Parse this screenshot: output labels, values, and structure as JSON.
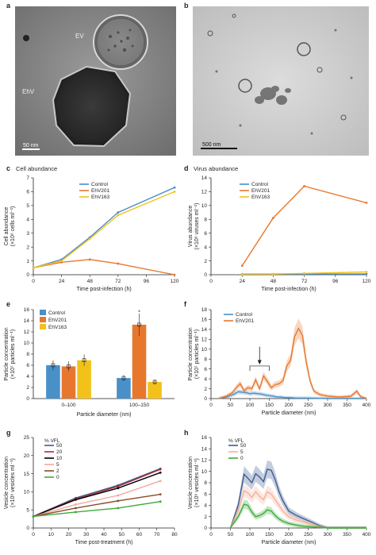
{
  "panels": {
    "a": {
      "label": "a",
      "em_labels": {
        "ev": "EV",
        "ehv": "EhV"
      },
      "scale_bar": "50 nm"
    },
    "b": {
      "label": "b",
      "scale_bar": "500 nm"
    },
    "c": {
      "label": "c",
      "title": "Cell abundance"
    },
    "d": {
      "label": "d",
      "title": "Virus abundance"
    },
    "e": {
      "label": "e"
    },
    "f": {
      "label": "f"
    },
    "g": {
      "label": "g"
    },
    "h": {
      "label": "h"
    }
  },
  "colors": {
    "control": "#4a90c8",
    "ehv201": "#e8772e",
    "ehv163": "#f2c21b"
  },
  "chart_data": [
    {
      "id": "c",
      "type": "line",
      "title": "Cell abundance",
      "xlabel": "Time post-infection (h)",
      "ylabel": "Cell abundance",
      "ylabel2": "(×10⁶ cells ml⁻¹)",
      "xlim": [
        0,
        120
      ],
      "ylim": [
        0,
        7
      ],
      "xticks": [
        0,
        24,
        48,
        72,
        96,
        120
      ],
      "yticks": [
        0,
        1,
        2,
        3,
        4,
        5,
        6,
        7
      ],
      "series": [
        {
          "name": "Control",
          "color": "#4a90c8",
          "x": [
            0,
            24,
            48,
            72,
            120
          ],
          "y": [
            0.5,
            1.1,
            2.7,
            4.5,
            6.3
          ]
        },
        {
          "name": "EhV201",
          "color": "#e8772e",
          "x": [
            0,
            24,
            48,
            72,
            120
          ],
          "y": [
            0.5,
            0.9,
            1.1,
            0.8,
            0.0
          ]
        },
        {
          "name": "EhV163",
          "color": "#f2c21b",
          "x": [
            0,
            24,
            48,
            72,
            120
          ],
          "y": [
            0.5,
            1.0,
            2.6,
            4.3,
            6.0
          ]
        }
      ]
    },
    {
      "id": "d",
      "type": "line",
      "title": "Virus abundance",
      "xlabel": "Time post-infection (h)",
      "ylabel": "Virus abundance",
      "ylabel2": "(×10⁶ viruses ml⁻¹)",
      "xlim": [
        0,
        120
      ],
      "ylim": [
        0,
        14
      ],
      "xticks": [
        0,
        24,
        48,
        72,
        96,
        120
      ],
      "yticks": [
        0,
        2,
        4,
        6,
        8,
        10,
        12,
        14
      ],
      "series": [
        {
          "name": "Control",
          "color": "#4a90c8",
          "x": [
            24,
            48,
            72,
            120
          ],
          "y": [
            0.1,
            0.1,
            0.1,
            0.1
          ]
        },
        {
          "name": "EhV201",
          "color": "#e8772e",
          "x": [
            24,
            48,
            72,
            120
          ],
          "y": [
            1.3,
            8.2,
            12.8,
            10.4
          ]
        },
        {
          "name": "EhV163",
          "color": "#f2c21b",
          "x": [
            24,
            48,
            72,
            120
          ],
          "y": [
            0.1,
            0.1,
            0.2,
            0.4
          ]
        }
      ]
    },
    {
      "id": "e",
      "type": "bar",
      "xlabel": "Particle diameter (nm)",
      "ylabel": "Particle concentration",
      "ylabel2": "(×10⁷ particles ml⁻¹)",
      "ylim": [
        0,
        16
      ],
      "yticks": [
        0,
        2,
        4,
        6,
        8,
        10,
        12,
        14,
        16
      ],
      "categories": [
        "0–100",
        "100–150"
      ],
      "annotation": "*",
      "series": [
        {
          "name": "Control",
          "color": "#4a90c8",
          "values": [
            6.0,
            3.7
          ]
        },
        {
          "name": "EhV201",
          "color": "#e8772e",
          "values": [
            5.8,
            13.3
          ]
        },
        {
          "name": "EhV163",
          "color": "#f2c21b",
          "values": [
            6.9,
            3.0
          ]
        }
      ]
    },
    {
      "id": "f",
      "type": "line",
      "xlabel": "Particle diameter (nm)",
      "ylabel": "Particle concentration",
      "ylabel2": "(×10⁷ particles ml⁻¹)",
      "xlim": [
        0,
        400
      ],
      "ylim": [
        0,
        18
      ],
      "xticks": [
        0,
        50,
        100,
        150,
        200,
        250,
        300,
        350,
        400
      ],
      "yticks": [
        0,
        2,
        4,
        6,
        8,
        10,
        12,
        14,
        16,
        18
      ],
      "series": [
        {
          "name": "Control",
          "color": "#4a90c8",
          "x": [
            20,
            40,
            60,
            70,
            80,
            90,
            100,
            110,
            120,
            130,
            140,
            150,
            160,
            170,
            180,
            190,
            200,
            220,
            250,
            300,
            350,
            400
          ],
          "y": [
            0,
            0.3,
            0.9,
            1.4,
            1.3,
            1.2,
            1.0,
            1.1,
            1.0,
            0.9,
            0.7,
            0.6,
            0.5,
            0.3,
            0.3,
            0.2,
            0.2,
            0.1,
            0.1,
            0,
            0,
            0
          ]
        },
        {
          "name": "EhV201",
          "color": "#e8772e",
          "x": [
            20,
            40,
            55,
            65,
            75,
            85,
            95,
            105,
            115,
            125,
            135,
            145,
            155,
            165,
            175,
            185,
            195,
            205,
            215,
            225,
            235,
            245,
            255,
            265,
            280,
            300,
            330,
            350,
            360,
            375,
            385,
            400
          ],
          "y": [
            0,
            0.5,
            1.2,
            2.2,
            3.0,
            1.6,
            2.2,
            2.0,
            3.8,
            2.0,
            4.6,
            3.5,
            2.2,
            2.8,
            3.0,
            3.6,
            6.6,
            7.8,
            12.5,
            14.2,
            12.8,
            7.4,
            3.6,
            1.5,
            0.8,
            0.5,
            0.3,
            0.4,
            0.5,
            1.5,
            0.4,
            0
          ]
        }
      ]
    },
    {
      "id": "g",
      "type": "line",
      "legend_title": "% VFL",
      "xlabel": "Time post-treatment (h)",
      "ylabel": "Vesicle concentration",
      "ylabel2": "(×10⁶ vesicles ml⁻¹)",
      "xlim": [
        0,
        80
      ],
      "ylim": [
        0,
        25
      ],
      "xticks": [
        0,
        10,
        20,
        30,
        40,
        50,
        60,
        70,
        80
      ],
      "yticks": [
        0,
        5,
        10,
        15,
        20,
        25
      ],
      "series": [
        {
          "name": "50",
          "color": "#3b5b8f",
          "x": [
            0,
            24,
            48,
            72
          ],
          "y": [
            3.2,
            8.3,
            11.8,
            16.4
          ]
        },
        {
          "name": "20",
          "color": "#b2282e",
          "x": [
            0,
            24,
            48,
            72
          ],
          "y": [
            3.2,
            8.0,
            11.5,
            16.2
          ]
        },
        {
          "name": "10",
          "color": "#000000",
          "x": [
            0,
            24,
            48,
            72
          ],
          "y": [
            3.2,
            7.8,
            11.0,
            15.3
          ]
        },
        {
          "name": "5",
          "color": "#f2a7a0",
          "x": [
            0,
            24,
            48,
            72
          ],
          "y": [
            3.2,
            6.5,
            9.0,
            13.0
          ]
        },
        {
          "name": "2",
          "color": "#8b4a2b",
          "x": [
            0,
            24,
            48,
            72
          ],
          "y": [
            3.2,
            5.5,
            7.5,
            9.3
          ]
        },
        {
          "name": "0",
          "color": "#3cab38",
          "x": [
            0,
            24,
            48,
            72
          ],
          "y": [
            3.2,
            4.4,
            5.5,
            7.3
          ]
        }
      ]
    },
    {
      "id": "h",
      "type": "line",
      "legend_title": "% VFL",
      "xlabel": "Particle diameter (nm)",
      "ylabel": "Vesicle concentration",
      "ylabel2": "(×10⁶ vesicles ml⁻¹)",
      "xlim": [
        0,
        400
      ],
      "ylim": [
        0,
        16
      ],
      "xticks": [
        0,
        50,
        100,
        150,
        200,
        250,
        300,
        350,
        400
      ],
      "yticks": [
        0,
        2,
        4,
        6,
        8,
        10,
        12,
        14,
        16
      ],
      "series": [
        {
          "name": "50",
          "color": "#3b5b8f",
          "x": [
            50,
            70,
            85,
            95,
            105,
            115,
            125,
            135,
            145,
            155,
            165,
            175,
            185,
            200,
            220,
            240,
            260,
            280,
            300,
            400
          ],
          "y": [
            0,
            4,
            9.5,
            8.8,
            8.0,
            9.6,
            9.0,
            8.2,
            10.4,
            10.2,
            8.6,
            6.4,
            4.8,
            3.0,
            2.2,
            1.6,
            1.0,
            0.4,
            0,
            0
          ]
        },
        {
          "name": "5",
          "color": "#f4b09b",
          "x": [
            50,
            70,
            85,
            95,
            105,
            115,
            125,
            135,
            145,
            155,
            165,
            175,
            185,
            200,
            220,
            240,
            260,
            280,
            300,
            400
          ],
          "y": [
            0,
            3,
            6.6,
            6.2,
            5.4,
            6.4,
            5.6,
            5.0,
            6.4,
            6.0,
            5.0,
            4.0,
            3.0,
            2.0,
            1.4,
            1.0,
            0.6,
            0.2,
            0,
            0
          ]
        },
        {
          "name": "0",
          "color": "#3cab38",
          "x": [
            50,
            70,
            85,
            95,
            105,
            115,
            125,
            135,
            145,
            155,
            165,
            175,
            185,
            200,
            220,
            240,
            260,
            280,
            300,
            400
          ],
          "y": [
            0,
            2,
            4.2,
            4.0,
            2.8,
            2.0,
            2.2,
            2.6,
            3.2,
            3.0,
            2.2,
            1.6,
            1.2,
            0.8,
            0.5,
            0.3,
            0.2,
            0.1,
            0,
            0
          ]
        }
      ]
    }
  ]
}
